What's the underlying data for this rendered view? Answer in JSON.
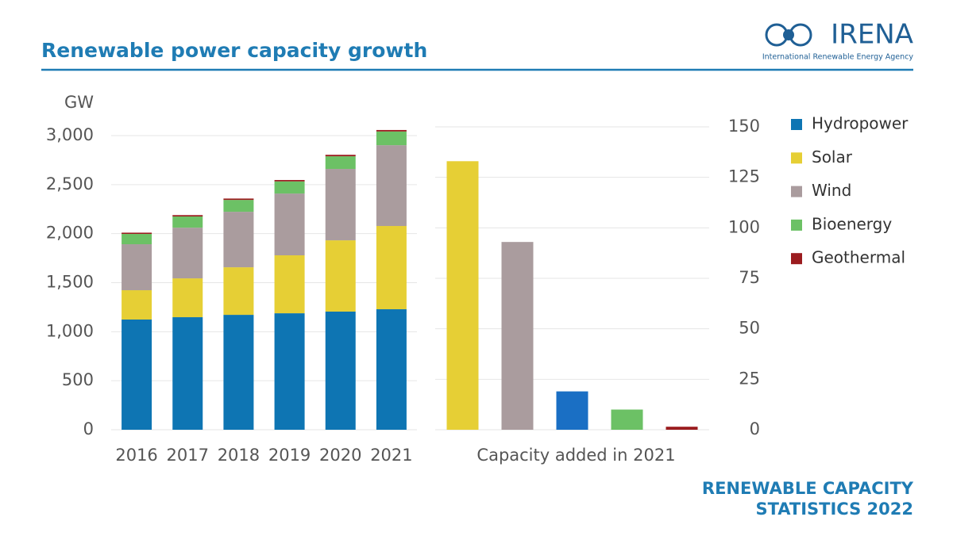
{
  "header": {
    "title": "Renewable power capacity growth",
    "logo_name": "IRENA",
    "logo_subtitle": "International Renewable Energy Agency"
  },
  "footer": [
    "RENEWABLE CAPACITY",
    "STATISTICS 2022"
  ],
  "chart_data": [
    {
      "type": "bar",
      "stacked": true,
      "y_label": "GW",
      "categories": [
        "2016",
        "2017",
        "2018",
        "2019",
        "2020",
        "2021"
      ],
      "series": [
        {
          "name": "Hydropower",
          "color": "#0e75b3",
          "values": [
            1124,
            1148,
            1172,
            1188,
            1205,
            1229
          ]
        },
        {
          "name": "Solar",
          "color": "#e6cf35",
          "values": [
            299,
            396,
            485,
            591,
            727,
            849
          ]
        },
        {
          "name": "Wind",
          "color": "#aa9c9e",
          "values": [
            469,
            517,
            566,
            630,
            728,
            824
          ]
        },
        {
          "name": "Bioenergy",
          "color": "#6cc165",
          "values": [
            105,
            114,
            121,
            124,
            129,
            140
          ]
        },
        {
          "name": "Geothermal",
          "color": "#9b1c1f",
          "values": [
            13,
            14,
            14,
            14,
            15,
            15
          ]
        }
      ],
      "ylim": [
        0,
        3000
      ],
      "yticks": [
        0,
        500,
        {
          "value": 1000,
          "label": "1,000"
        },
        {
          "value": 1500,
          "label": "1,500"
        },
        {
          "value": 2000,
          "label": "2,000"
        },
        {
          "value": 2500,
          "label": "2,500"
        },
        {
          "value": 3000,
          "label": "3,000"
        }
      ],
      "grid": true,
      "legend": "right"
    },
    {
      "type": "bar",
      "x_label": "Capacity added in 2021",
      "categories": [
        null,
        null,
        null,
        null,
        null
      ],
      "values": [
        133,
        93,
        19,
        10,
        1.5
      ],
      "colors": [
        "#e6cf35",
        "#aa9c9e",
        "#1a6fc4",
        "#6cc165",
        "#9b1c1f"
      ],
      "ylim": [
        0,
        150
      ],
      "yticks": [
        0,
        25,
        50,
        75,
        100,
        125,
        150
      ],
      "grid": true
    }
  ]
}
